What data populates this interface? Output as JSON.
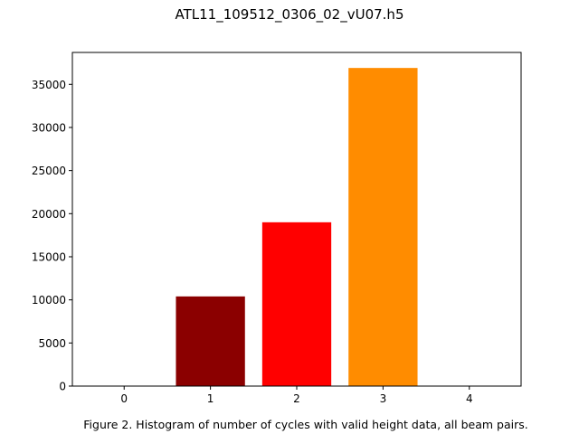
{
  "chart_data": {
    "type": "bar",
    "title": "ATL11_109512_0306_02_vU07.h5",
    "caption": "Figure 2. Histogram of number of cycles with valid height data, all beam pairs.",
    "xlabel": "",
    "ylabel": "",
    "categories": [
      "0",
      "1",
      "2",
      "3",
      "4"
    ],
    "x": [
      0,
      1,
      2,
      3,
      4
    ],
    "values": [
      0,
      10400,
      19000,
      36900,
      0
    ],
    "colors": [
      "#000000",
      "#8b0000",
      "#ff0000",
      "#ff8c00",
      "#ffff00"
    ],
    "xlim": [
      -0.6,
      4.6
    ],
    "ylim": [
      0,
      38700
    ],
    "yticks": [
      0,
      5000,
      10000,
      15000,
      20000,
      25000,
      30000,
      35000
    ],
    "grid": false,
    "legend": "none"
  }
}
